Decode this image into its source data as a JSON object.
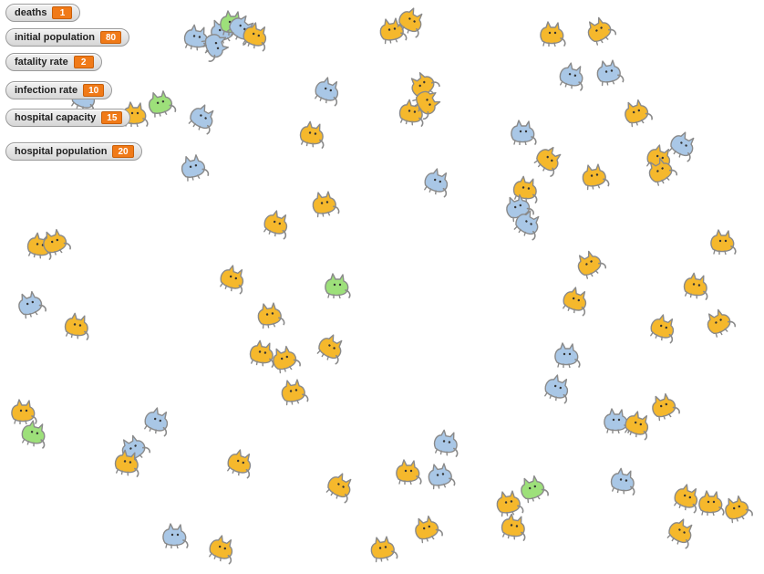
{
  "watchers": [
    {
      "id": "deaths",
      "label": "deaths",
      "value": "1"
    },
    {
      "id": "initial-population",
      "label": "initial population",
      "value": "80"
    },
    {
      "id": "fatality-rate",
      "label": "fatality rate",
      "value": "2"
    },
    {
      "id": "infection-rate",
      "label": "infection rate",
      "value": "10"
    },
    {
      "id": "hospital-capacity",
      "label": "hospital capacity",
      "value": "15"
    },
    {
      "id": "hospital-population",
      "label": "hospital population",
      "value": "20"
    }
  ],
  "colors": {
    "healthy": "#f5b82c",
    "infected": "#a9c7e6",
    "recovered": "#9de07a",
    "outline": "#8a8a8a",
    "watcher_value": "#f07a18"
  },
  "sprite_icon": "cat-costume-icon"
}
